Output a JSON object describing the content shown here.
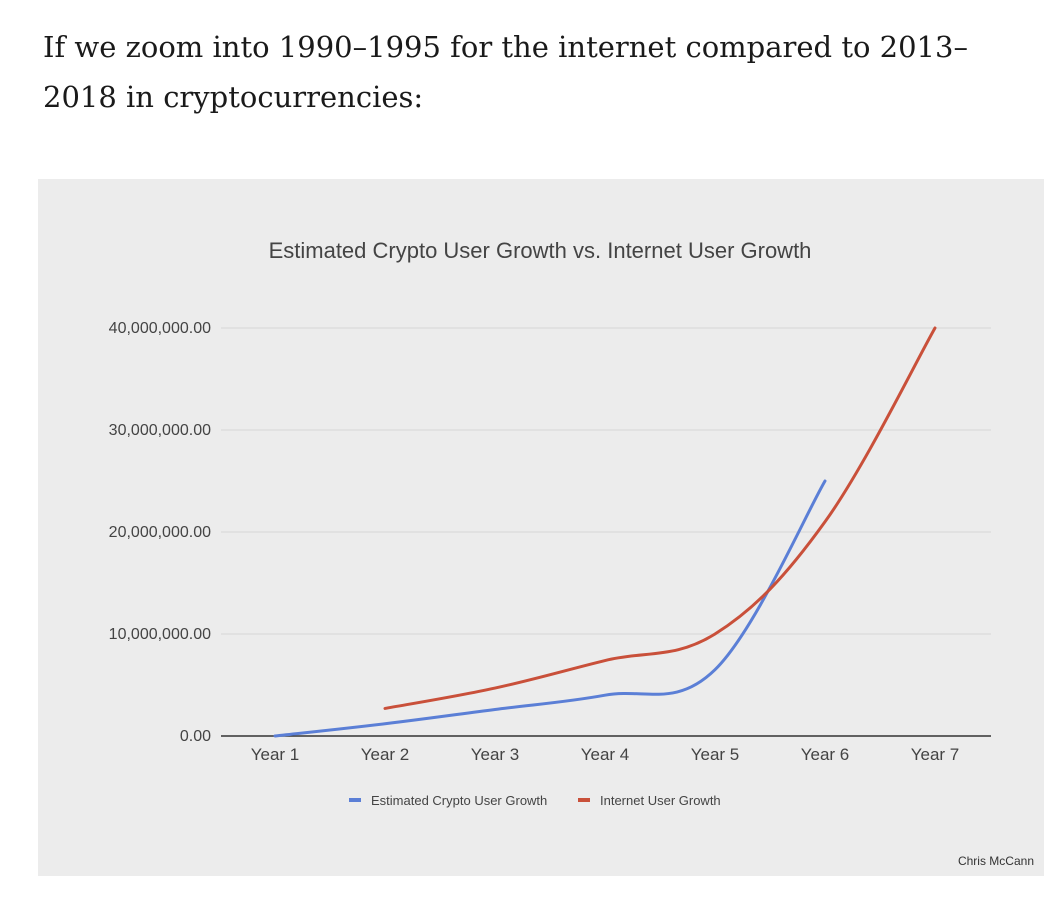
{
  "intro_text": "If we zoom into 1990–1995 for the internet compared to 2013–2018 in cryptocurrencies:",
  "credit": "Chris McCann",
  "colors": {
    "crypto": "#5b7fd6",
    "internet": "#c9503a",
    "card_bg": "#ececec",
    "grid": "#d6d6d6",
    "text": "#444444"
  },
  "chart_data": {
    "type": "line",
    "title": "Estimated Crypto User Growth vs. Internet User Growth",
    "xlabel": "",
    "ylabel": "",
    "categories": [
      "Year 1",
      "Year 2",
      "Year 3",
      "Year 4",
      "Year 5",
      "Year 6",
      "Year 7"
    ],
    "yticks": [
      "0.00",
      "10,000,000.00",
      "20,000,000.00",
      "30,000,000.00",
      "40,000,000.00"
    ],
    "ylim": [
      0,
      40000000
    ],
    "legend_position": "bottom",
    "grid": true,
    "series": [
      {
        "name": "Estimated Crypto User Growth",
        "values": [
          0,
          1200000,
          2600000,
          4000000,
          6500000,
          25000000,
          null
        ]
      },
      {
        "name": "Internet User Growth",
        "values": [
          null,
          2700000,
          4700000,
          7400000,
          10000000,
          21000000,
          40000000
        ]
      }
    ]
  }
}
